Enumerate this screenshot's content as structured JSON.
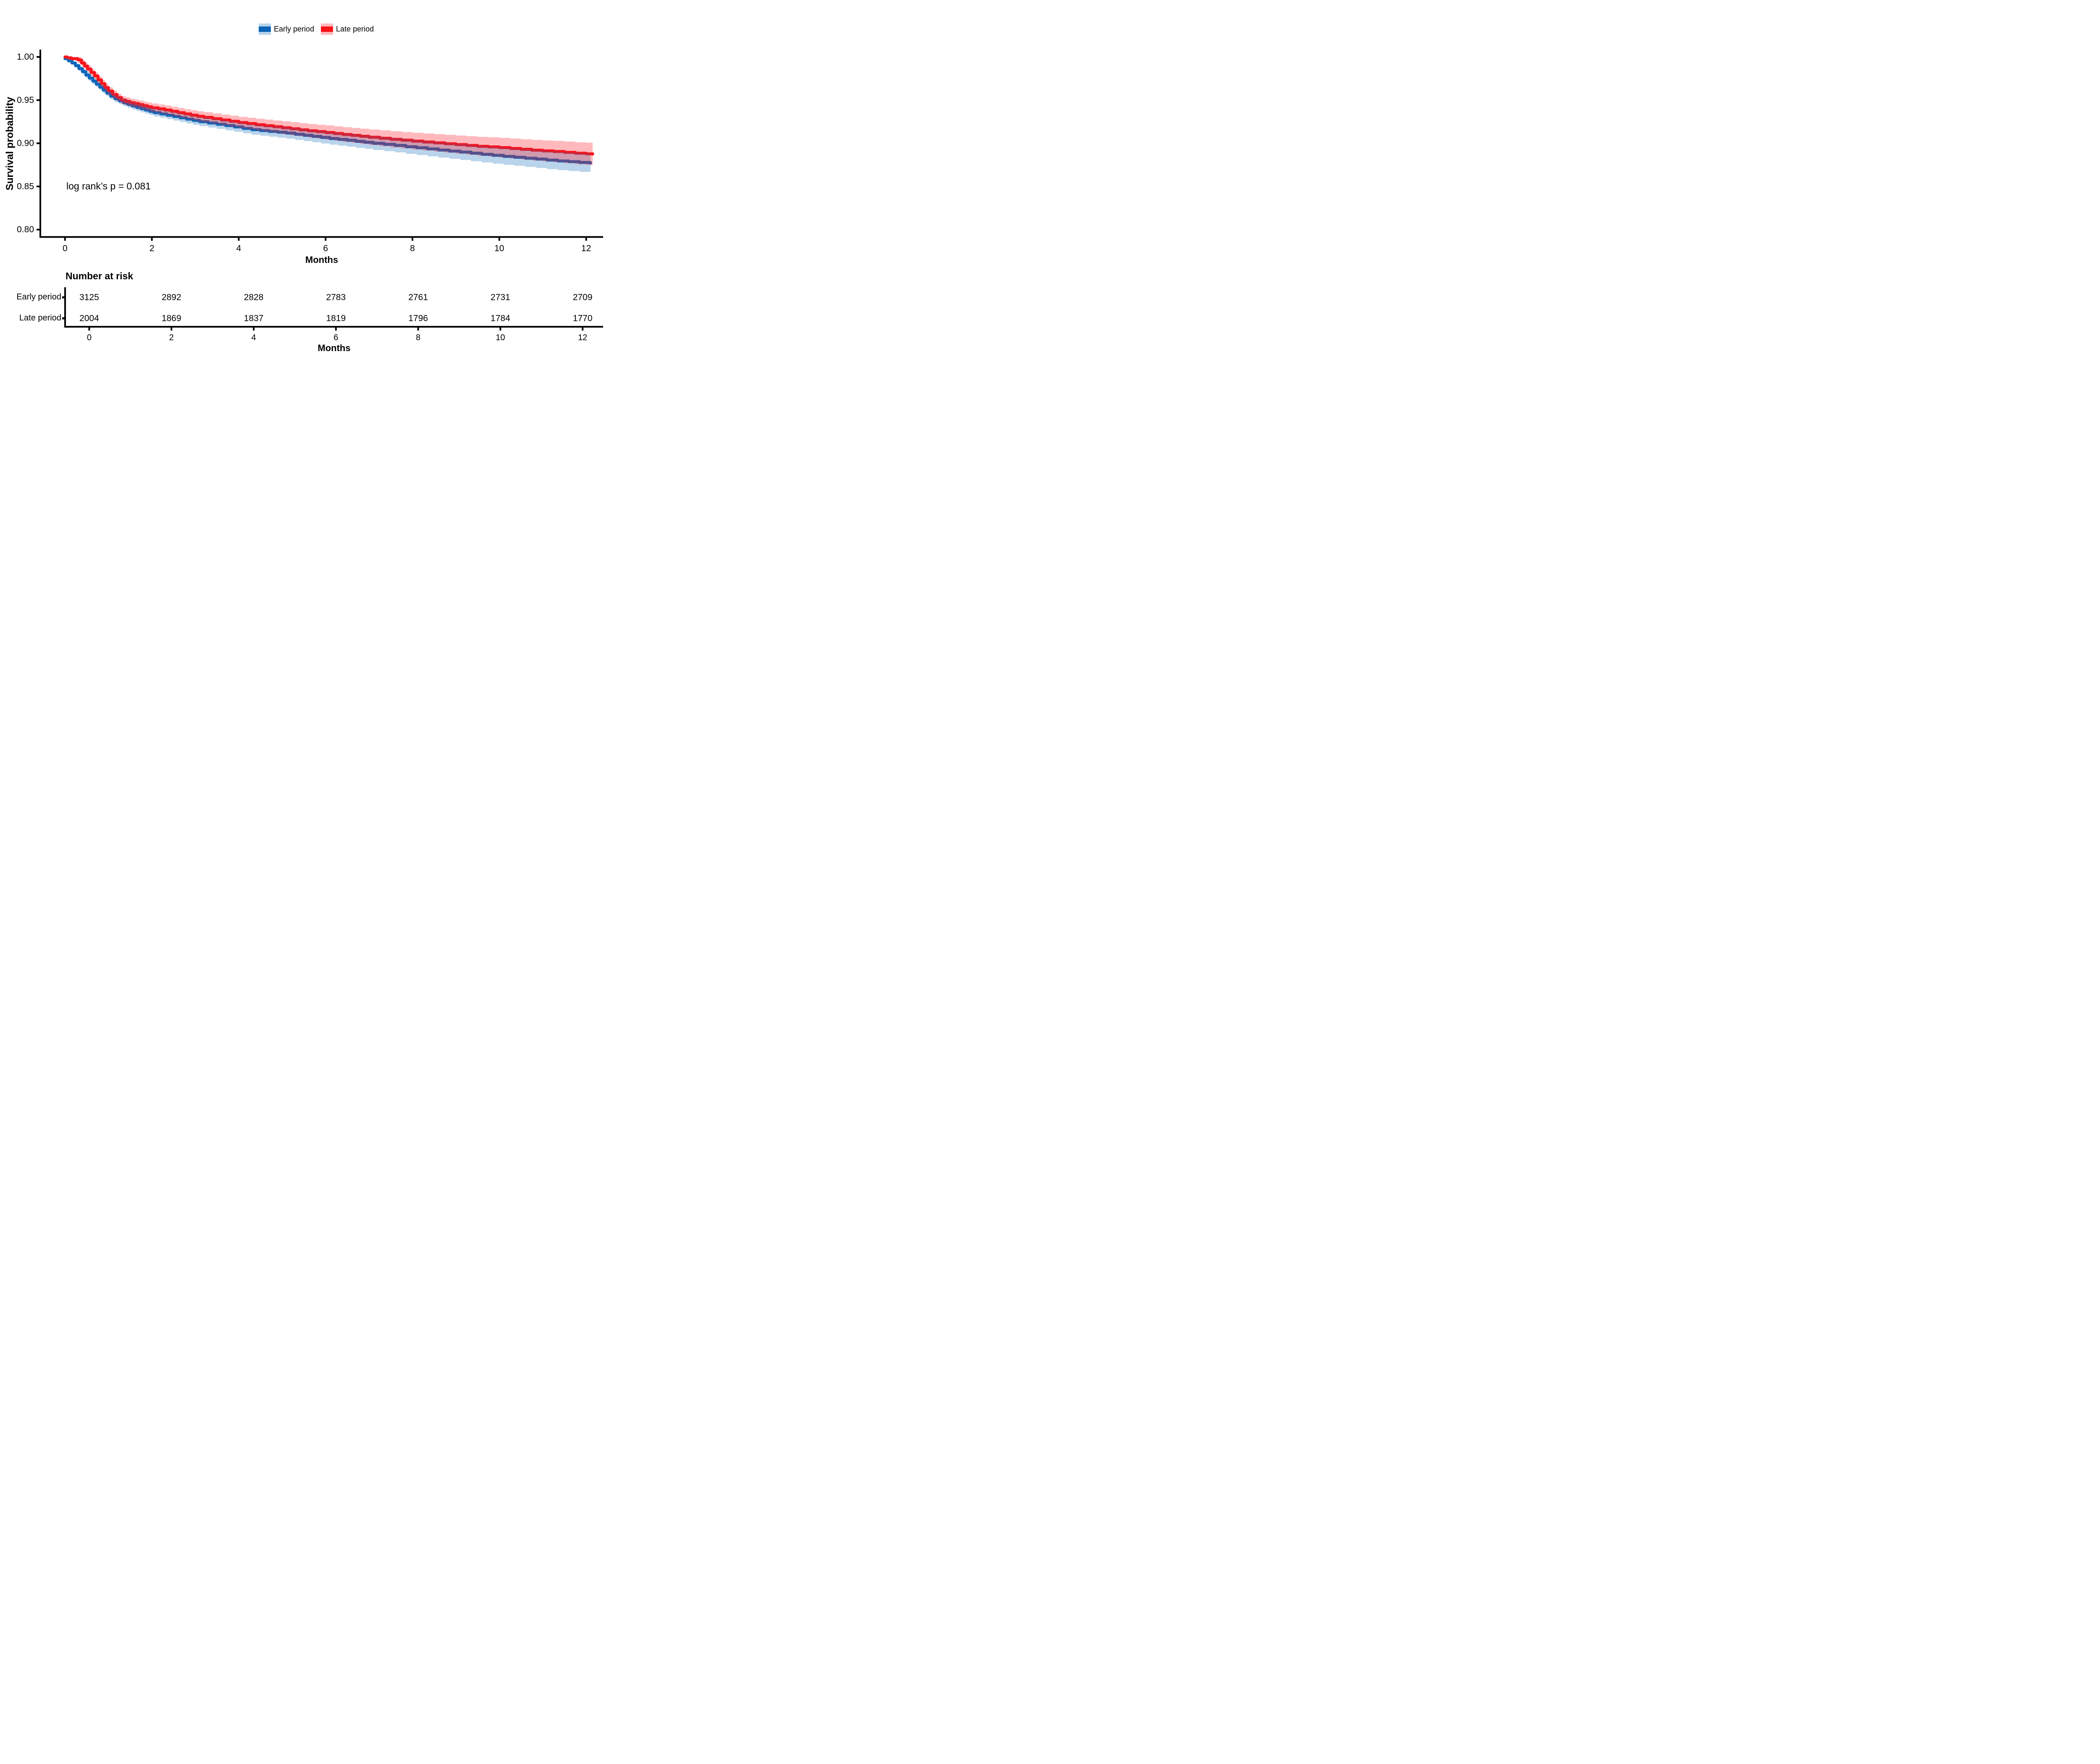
{
  "legend": {
    "items": [
      {
        "label": "Early period",
        "line_color": "#0B63B8",
        "band_color": "rgba(22,112,188,0.30)"
      },
      {
        "label": "Late period",
        "line_color": "#F81419",
        "band_color": "rgba(255,22,38,0.30)"
      }
    ]
  },
  "annotation": {
    "text": "log rank’s p = 0.081"
  },
  "yaxis": {
    "title": "Survival probability",
    "ticks": [
      1.0,
      0.95,
      0.9,
      0.85,
      0.8
    ],
    "tick_labels": [
      "1.00",
      "0.95",
      "0.90",
      "0.85",
      "0.80"
    ],
    "range": [
      0.8,
      1.0
    ]
  },
  "xaxis": {
    "title": "Months",
    "ticks": [
      0,
      2,
      4,
      6,
      8,
      10,
      12
    ],
    "tick_labels": [
      "0",
      "2",
      "4",
      "6",
      "8",
      "10",
      "12"
    ],
    "range": [
      0,
      12
    ]
  },
  "chart_data": {
    "type": "line",
    "subtype": "kaplan-meier-step-with-confidence-bands",
    "title": "",
    "xlabel": "Months",
    "ylabel": "Survival probability",
    "xlim": [
      0,
      12.2
    ],
    "ylim": [
      0.8,
      1.0
    ],
    "grid": false,
    "legend_position": "top-center",
    "annotation": "log rank’s p = 0.081",
    "series": [
      {
        "name": "Early period",
        "color": "#0B63B8",
        "band_color": "rgba(22,112,188,0.30)",
        "x": [
          0,
          0.08,
          0.16,
          0.24,
          0.32,
          0.4,
          0.48,
          0.56,
          0.64,
          0.72,
          0.8,
          0.88,
          0.96,
          1.05,
          1.15,
          1.25,
          1.35,
          1.45,
          1.55,
          1.65,
          1.75,
          1.85,
          1.95,
          2.05,
          2.2,
          2.35,
          2.5,
          2.65,
          2.8,
          2.95,
          3.1,
          3.3,
          3.5,
          3.7,
          3.9,
          4.1,
          4.3,
          4.5,
          4.7,
          4.9,
          5.1,
          5.3,
          5.5,
          5.7,
          5.9,
          6.1,
          6.3,
          6.5,
          6.7,
          6.9,
          7.1,
          7.35,
          7.6,
          7.85,
          8.1,
          8.35,
          8.6,
          8.85,
          9.1,
          9.35,
          9.6,
          9.85,
          10.1,
          10.35,
          10.6,
          10.85,
          11.1,
          11.35,
          11.6,
          11.85,
          12.1
        ],
        "surv": [
          0.998,
          0.9955,
          0.993,
          0.99,
          0.9865,
          0.983,
          0.979,
          0.9755,
          0.972,
          0.9685,
          0.965,
          0.9615,
          0.958,
          0.9545,
          0.9515,
          0.949,
          0.9468,
          0.945,
          0.9432,
          0.9415,
          0.94,
          0.9385,
          0.937,
          0.9355,
          0.934,
          0.9325,
          0.931,
          0.9295,
          0.928,
          0.9265,
          0.925,
          0.9235,
          0.922,
          0.9205,
          0.919,
          0.9172,
          0.9158,
          0.9147,
          0.9137,
          0.9128,
          0.9118,
          0.9105,
          0.9092,
          0.908,
          0.9068,
          0.9055,
          0.9045,
          0.9035,
          0.9022,
          0.9012,
          0.9,
          0.8988,
          0.8975,
          0.896,
          0.8948,
          0.8935,
          0.8922,
          0.891,
          0.8898,
          0.8885,
          0.8872,
          0.886,
          0.8848,
          0.8838,
          0.8827,
          0.8817,
          0.8805,
          0.8795,
          0.8787,
          0.8778,
          0.877
        ],
        "upper": [
          0.999,
          0.9969,
          0.9948,
          0.9922,
          0.9891,
          0.9863,
          0.9823,
          0.9789,
          0.9754,
          0.972,
          0.9685,
          0.9651,
          0.9616,
          0.9582,
          0.9553,
          0.9528,
          0.9507,
          0.949,
          0.9472,
          0.9456,
          0.9442,
          0.9427,
          0.9413,
          0.9399,
          0.9385,
          0.9371,
          0.9357,
          0.9343,
          0.9329,
          0.9315,
          0.9301,
          0.9287,
          0.9273,
          0.926,
          0.9246,
          0.9229,
          0.9217,
          0.9207,
          0.9198,
          0.9191,
          0.9182,
          0.9171,
          0.9159,
          0.9148,
          0.9138,
          0.9126,
          0.9117,
          0.9109,
          0.9097,
          0.9088,
          0.9078,
          0.9067,
          0.9056,
          0.9043,
          0.9032,
          0.9021,
          0.901,
          0.8999,
          0.8989,
          0.8978,
          0.8966,
          0.8956,
          0.8946,
          0.8937,
          0.8928,
          0.892,
          0.8909,
          0.8901,
          0.8895,
          0.8887,
          0.8881
        ],
        "lower": [
          0.997,
          0.9941,
          0.9912,
          0.9878,
          0.9839,
          0.9797,
          0.9757,
          0.9721,
          0.9686,
          0.965,
          0.9615,
          0.9579,
          0.9544,
          0.9508,
          0.9477,
          0.9452,
          0.9429,
          0.941,
          0.9392,
          0.9374,
          0.9358,
          0.9343,
          0.9327,
          0.9311,
          0.9295,
          0.9279,
          0.9263,
          0.9247,
          0.9231,
          0.9215,
          0.9199,
          0.9183,
          0.9167,
          0.915,
          0.9134,
          0.9115,
          0.9099,
          0.9087,
          0.9076,
          0.9065,
          0.9054,
          0.9039,
          0.9025,
          0.9012,
          0.8998,
          0.8984,
          0.8973,
          0.8961,
          0.8947,
          0.8936,
          0.8922,
          0.8909,
          0.8894,
          0.8877,
          0.8864,
          0.8849,
          0.8834,
          0.8821,
          0.8807,
          0.8792,
          0.8778,
          0.8764,
          0.875,
          0.8739,
          0.8726,
          0.8714,
          0.8701,
          0.8689,
          0.8679,
          0.8669,
          0.8659
        ]
      },
      {
        "name": "Late period",
        "color": "#F81419",
        "band_color": "rgba(255,22,38,0.30)",
        "x": [
          0,
          0.05,
          0.15,
          0.3,
          0.38,
          0.45,
          0.52,
          0.6,
          0.68,
          0.76,
          0.84,
          0.92,
          1,
          1.1,
          1.2,
          1.3,
          1.4,
          1.5,
          1.6,
          1.7,
          1.8,
          1.9,
          2,
          2.15,
          2.3,
          2.45,
          2.6,
          2.75,
          2.9,
          3.05,
          3.2,
          3.4,
          3.6,
          3.8,
          4,
          4.2,
          4.4,
          4.6,
          4.8,
          5,
          5.2,
          5.4,
          5.6,
          5.8,
          6,
          6.2,
          6.4,
          6.6,
          6.8,
          7,
          7.25,
          7.5,
          7.75,
          8,
          8.25,
          8.5,
          8.75,
          9,
          9.25,
          9.5,
          9.75,
          10,
          10.25,
          10.5,
          10.75,
          11,
          11.25,
          11.5,
          11.75,
          12,
          12.15
        ],
        "surv": [
          1,
          0.999,
          0.998,
          0.9965,
          0.993,
          0.9895,
          0.986,
          0.982,
          0.978,
          0.9735,
          0.969,
          0.9645,
          0.9605,
          0.9565,
          0.953,
          0.95,
          0.9485,
          0.947,
          0.946,
          0.9448,
          0.9435,
          0.9422,
          0.941,
          0.9398,
          0.9385,
          0.937,
          0.9355,
          0.934,
          0.9325,
          0.9312,
          0.93,
          0.9285,
          0.927,
          0.9255,
          0.924,
          0.9228,
          0.9215,
          0.9203,
          0.9192,
          0.918,
          0.9168,
          0.9156,
          0.9145,
          0.9135,
          0.9125,
          0.9113,
          0.9102,
          0.9092,
          0.9081,
          0.907,
          0.9058,
          0.9046,
          0.9036,
          0.9025,
          0.9015,
          0.9005,
          0.8995,
          0.8985,
          0.8975,
          0.8965,
          0.8958,
          0.895,
          0.894,
          0.893,
          0.892,
          0.8912,
          0.8905,
          0.8895,
          0.8885,
          0.8878,
          0.8875
        ],
        "upper": [
          1,
          1,
          1,
          1,
          0.9968,
          0.9934,
          0.9899,
          0.986,
          0.982,
          0.9776,
          0.9732,
          0.9687,
          0.9648,
          0.9609,
          0.9574,
          0.9545,
          0.9531,
          0.9517,
          0.9507,
          0.9496,
          0.9484,
          0.9472,
          0.9461,
          0.945,
          0.9438,
          0.9424,
          0.941,
          0.9396,
          0.9383,
          0.9371,
          0.936,
          0.9347,
          0.9333,
          0.932,
          0.9306,
          0.9296,
          0.9284,
          0.9274,
          0.9264,
          0.9254,
          0.9244,
          0.9233,
          0.9224,
          0.9215,
          0.9207,
          0.9196,
          0.9187,
          0.9178,
          0.9169,
          0.916,
          0.915,
          0.914,
          0.9131,
          0.9122,
          0.9114,
          0.9106,
          0.9098,
          0.909,
          0.9082,
          0.9074,
          0.9069,
          0.9063,
          0.9055,
          0.9047,
          0.9039,
          0.9033,
          0.9028,
          0.902,
          0.9012,
          0.9007,
          0.9005
        ],
        "lower": [
          0.9992,
          0.9978,
          0.996,
          0.9928,
          0.9892,
          0.9856,
          0.9821,
          0.978,
          0.974,
          0.9694,
          0.9648,
          0.9603,
          0.9562,
          0.9521,
          0.9486,
          0.9455,
          0.9439,
          0.9423,
          0.9413,
          0.94,
          0.9386,
          0.9372,
          0.9359,
          0.9346,
          0.9332,
          0.9316,
          0.93,
          0.9284,
          0.9267,
          0.9253,
          0.924,
          0.9223,
          0.9207,
          0.919,
          0.9174,
          0.916,
          0.9146,
          0.9132,
          0.912,
          0.9106,
          0.9092,
          0.9079,
          0.9066,
          0.9055,
          0.9043,
          0.903,
          0.9017,
          0.9006,
          0.8993,
          0.898,
          0.8966,
          0.8952,
          0.8941,
          0.8928,
          0.8916,
          0.8904,
          0.8892,
          0.888,
          0.8868,
          0.8856,
          0.8847,
          0.8837,
          0.8825,
          0.8813,
          0.8801,
          0.8791,
          0.8782,
          0.877,
          0.8758,
          0.8749,
          0.8745
        ]
      }
    ]
  },
  "risk_table": {
    "title": "Number at risk",
    "xaxis_title": "Months",
    "time_points": [
      0,
      2,
      4,
      6,
      8,
      10,
      12
    ],
    "tick_labels": [
      "0",
      "2",
      "4",
      "6",
      "8",
      "10",
      "12"
    ],
    "rows": [
      {
        "label": "Early period",
        "color": "#0B63B8",
        "values": [
          "3125",
          "2892",
          "2828",
          "2783",
          "2761",
          "2731",
          "2709"
        ]
      },
      {
        "label": "Late period",
        "color": "#F81419",
        "values": [
          "2004",
          "1869",
          "1837",
          "1819",
          "1796",
          "1784",
          "1770"
        ]
      }
    ]
  }
}
